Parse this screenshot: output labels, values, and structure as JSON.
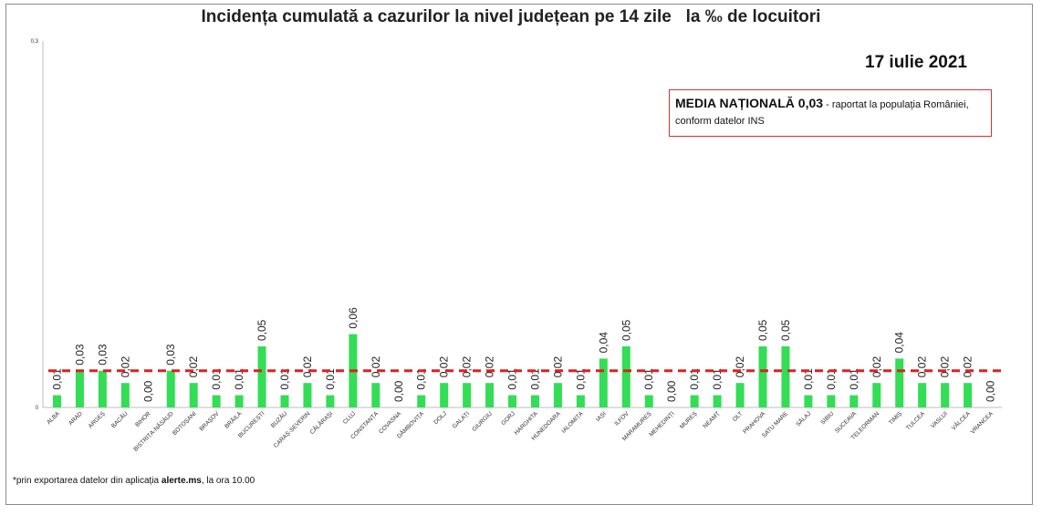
{
  "title": "Incidența cumulată a cazurilor la nivel județean pe 14 zile   la ‰ de locuitori",
  "date": "17 iulie 2021",
  "media_box": {
    "strong": "MEDIA NAȚIONALĂ 0,03",
    "rest": " - raportat la populația României, conform datelor INS"
  },
  "footnote": {
    "prefix": "*prin exportarea datelor din aplicația ",
    "bold": "alerte.ms",
    "suffix": ", la ora 10.00"
  },
  "colors": {
    "bar": "#33dd55",
    "reference_line": "#e02020",
    "box_border": "#d9332c"
  },
  "chart_data": {
    "type": "bar",
    "title": "Incidența cumulată a cazurilor la nivel județean pe 14 zile   la ‰ de locuitori",
    "xlabel": "",
    "ylabel": "",
    "ylim": [
      0,
      0.3
    ],
    "y_ticks": [
      "0",
      "0,3"
    ],
    "grid": false,
    "reference_line": {
      "value": 0.03,
      "style": "dashed",
      "color": "#e02020"
    },
    "categories": [
      "ALBA",
      "ARAD",
      "ARGEȘ",
      "BACĂU",
      "BIHOR",
      "BISTRIȚA-NĂSĂUD",
      "BOTOȘANI",
      "BRAȘOV",
      "BRĂILA",
      "BUCUREȘTI",
      "BUZĂU",
      "CARAȘ-SEVERIN",
      "CĂLĂRAȘI",
      "CLUJ",
      "CONSTANȚA",
      "COVASNA",
      "DÂMBOVIȚA",
      "DOLJ",
      "GALAȚI",
      "GIURGIU",
      "GORJ",
      "HARGHITA",
      "HUNEDOARA",
      "IALOMIȚA",
      "IAȘI",
      "ILFOV",
      "MARAMUREȘ",
      "MEHEDINȚI",
      "MUREȘ",
      "NEAMȚ",
      "OLT",
      "PRAHOVA",
      "SATU MARE",
      "SĂLAJ",
      "SIBIU",
      "SUCEAVA",
      "TELEORMAN",
      "TIMIȘ",
      "TULCEA",
      "VASLUI",
      "VÂLCEA",
      "VRANCEA"
    ],
    "values": [
      0.01,
      0.03,
      0.03,
      0.02,
      0.0,
      0.03,
      0.02,
      0.01,
      0.01,
      0.05,
      0.01,
      0.02,
      0.01,
      0.06,
      0.02,
      0.0,
      0.01,
      0.02,
      0.02,
      0.02,
      0.01,
      0.01,
      0.02,
      0.01,
      0.04,
      0.05,
      0.01,
      0.0,
      0.01,
      0.01,
      0.02,
      0.05,
      0.05,
      0.01,
      0.01,
      0.01,
      0.02,
      0.04,
      0.02,
      0.02,
      0.02,
      0.0
    ],
    "value_labels": [
      "0,01",
      "0,03",
      "0,03",
      "0,02",
      "0,00",
      "0,03",
      "0,02",
      "0,01",
      "0,01",
      "0,05",
      "0,01",
      "0,02",
      "0,01",
      "0,06",
      "0,02",
      "0,00",
      "0,01",
      "0,02",
      "0,02",
      "0,02",
      "0,01",
      "0,01",
      "0,02",
      "0,01",
      "0,04",
      "0,05",
      "0,01",
      "0,00",
      "0,01",
      "0,01",
      "0,02",
      "0,05",
      "0,05",
      "0,01",
      "0,01",
      "0,01",
      "0,02",
      "0,04",
      "0,02",
      "0,02",
      "0,02",
      "0,00"
    ]
  }
}
